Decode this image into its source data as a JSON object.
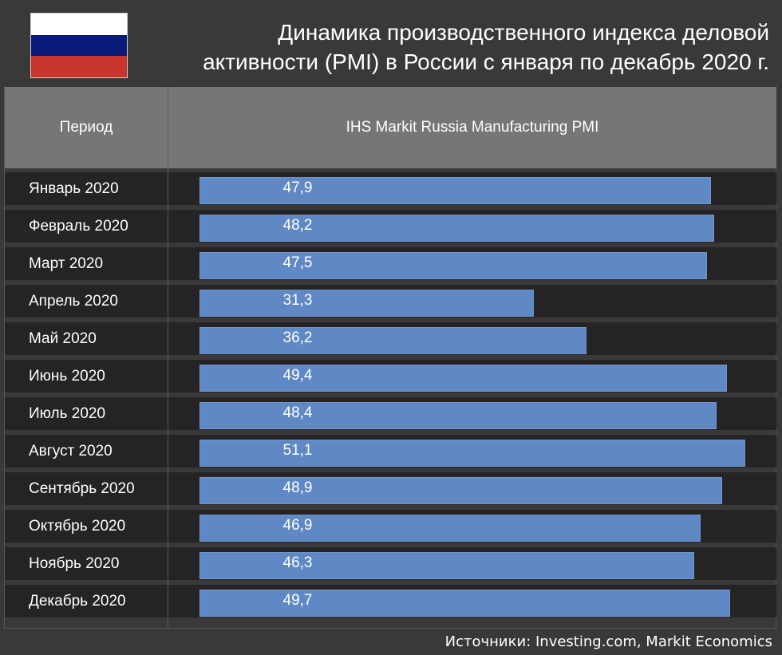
{
  "title": "Динамика производственного индекса деловой активности (PMI) в России с января по декабрь 2020 г.",
  "flag": {
    "name": "russia-flag",
    "colors": [
      "#ffffff",
      "#0a1a7a",
      "#c8352c"
    ]
  },
  "columns": {
    "period": "Период",
    "metric": "IHS Markit Russia Manufacturing PMI"
  },
  "source": "Источники: Investing.com, Markit Economics",
  "colors": {
    "bar": "#5f88c4",
    "background": "#3a3839",
    "row": "#252323",
    "header": "#777577"
  },
  "chart_data": {
    "type": "bar",
    "orientation": "horizontal",
    "title": "Динамика производственного индекса деловой активности (PMI) в России с января по декабрь 2020 г.",
    "categories": [
      "Январь 2020",
      "Февраль 2020",
      "Март 2020",
      "Апрель 2020",
      "Май 2020",
      "Июнь 2020",
      "Июль 2020",
      "Август 2020",
      "Сентябрь 2020",
      "Октябрь 2020",
      "Ноябрь 2020",
      "Декабрь 2020"
    ],
    "values": [
      47.9,
      48.2,
      47.5,
      31.3,
      36.2,
      49.4,
      48.4,
      51.1,
      48.9,
      46.9,
      46.3,
      49.7
    ],
    "value_labels": [
      "47,9",
      "48,2",
      "47,5",
      "31,3",
      "36,2",
      "49,4",
      "48,4",
      "51,1",
      "48,9",
      "46,9",
      "46,3",
      "49,7"
    ],
    "series": [
      {
        "name": "IHS Markit Russia Manufacturing PMI",
        "values": [
          47.9,
          48.2,
          47.5,
          31.3,
          36.2,
          49.4,
          48.4,
          51.1,
          48.9,
          46.9,
          46.3,
          49.7
        ]
      }
    ],
    "xlim": [
      0,
      51.1
    ]
  }
}
